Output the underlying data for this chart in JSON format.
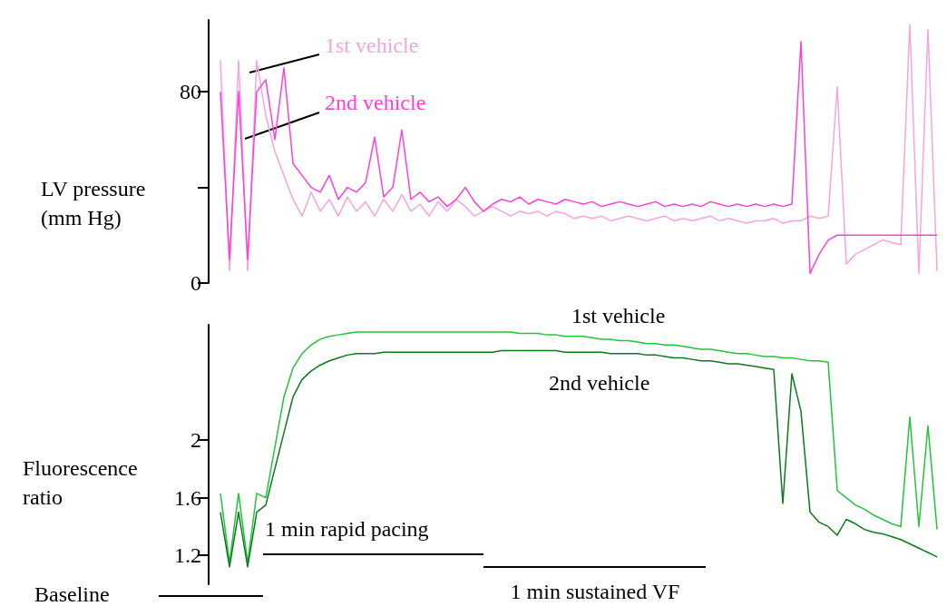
{
  "chart_data": [
    {
      "type": "line",
      "ylabel": "LV pressure (mm Hg)",
      "ylim": [
        0,
        110
      ],
      "yticks": [
        0,
        {
          "value": 40,
          "label": null
        },
        80
      ],
      "tick_labels": "y",
      "categories": [
        null,
        null,
        null,
        null,
        null,
        null,
        null,
        null,
        null,
        null,
        null,
        null,
        null,
        null,
        null,
        null,
        null,
        null,
        null,
        null,
        null,
        null,
        null,
        null,
        null,
        null,
        null,
        null,
        null,
        null,
        null,
        null,
        null,
        null,
        null,
        null,
        null,
        null,
        null,
        null,
        null,
        null,
        null,
        null,
        null,
        null,
        null,
        null,
        null,
        null,
        null,
        null,
        null,
        null,
        null,
        null,
        null,
        null,
        null,
        null,
        null,
        null,
        null,
        null,
        null,
        null,
        null,
        null,
        null,
        null,
        null,
        null,
        null,
        null,
        null,
        null,
        null,
        null,
        null,
        null
      ],
      "series": [
        {
          "name": "1st vehicle",
          "color": "#f7a3dd",
          "values": [
            93,
            5,
            93,
            5,
            93,
            70,
            55,
            45,
            35,
            28,
            38,
            30,
            35,
            28,
            36,
            30,
            34,
            28,
            35,
            30,
            37,
            30,
            33,
            28,
            34,
            30,
            35,
            32,
            28,
            30,
            32,
            30,
            28,
            30,
            29,
            30,
            28,
            30,
            29,
            27,
            28,
            27,
            28,
            26,
            27,
            28,
            27,
            26,
            27,
            28,
            26,
            27,
            26,
            27,
            28,
            26,
            27,
            26,
            25,
            26,
            26,
            27,
            25,
            26,
            26,
            28,
            27,
            28,
            82,
            8,
            12,
            14,
            16,
            18,
            17,
            16,
            108,
            4,
            106,
            5
          ]
        },
        {
          "name": "2nd vehicle",
          "color": "#ff40d6",
          "values": [
            80,
            10,
            80,
            10,
            80,
            85,
            60,
            90,
            50,
            45,
            40,
            38,
            45,
            35,
            40,
            38,
            42,
            61,
            36,
            40,
            64,
            35,
            38,
            34,
            36,
            32,
            35,
            40,
            34,
            30,
            33,
            35,
            34,
            36,
            33,
            35,
            34,
            33,
            35,
            34,
            33,
            34,
            32,
            33,
            34,
            33,
            32,
            33,
            34,
            32,
            33,
            32,
            33,
            32,
            34,
            33,
            32,
            33,
            32,
            33,
            32,
            33,
            32,
            33,
            101,
            4,
            12,
            18,
            20,
            20,
            20,
            20,
            20,
            20,
            20,
            20,
            20,
            20,
            20,
            20
          ]
        }
      ]
    },
    {
      "type": "line",
      "ylabel": "Fluorescence ratio",
      "ylim": [
        1.0,
        2.8
      ],
      "yticks": [
        1.2,
        1.6,
        2
      ],
      "tick_labels": "y",
      "annotations": [
        "Baseline",
        "1 min rapid pacing",
        "1 min sustained VF"
      ],
      "categories": [
        null,
        null,
        null,
        null,
        null,
        null,
        null,
        null,
        null,
        null,
        null,
        null,
        null,
        null,
        null,
        null,
        null,
        null,
        null,
        null,
        null,
        null,
        null,
        null,
        null,
        null,
        null,
        null,
        null,
        null,
        null,
        null,
        null,
        null,
        null,
        null,
        null,
        null,
        null,
        null,
        null,
        null,
        null,
        null,
        null,
        null,
        null,
        null,
        null,
        null,
        null,
        null,
        null,
        null,
        null,
        null,
        null,
        null,
        null,
        null,
        null,
        null,
        null,
        null,
        null,
        null,
        null,
        null,
        null,
        null,
        null,
        null,
        null,
        null,
        null,
        null,
        null,
        null,
        null,
        null
      ],
      "series": [
        {
          "name": "1st vehicle",
          "color": "#22c43a",
          "values": [
            1.63,
            1.15,
            1.63,
            1.15,
            1.63,
            1.6,
            1.95,
            2.3,
            2.5,
            2.6,
            2.66,
            2.7,
            2.72,
            2.73,
            2.74,
            2.75,
            2.75,
            2.75,
            2.75,
            2.75,
            2.75,
            2.75,
            2.75,
            2.75,
            2.75,
            2.75,
            2.75,
            2.75,
            2.75,
            2.75,
            2.75,
            2.75,
            2.75,
            2.74,
            2.74,
            2.74,
            2.73,
            2.73,
            2.72,
            2.72,
            2.72,
            2.71,
            2.7,
            2.7,
            2.69,
            2.69,
            2.68,
            2.67,
            2.67,
            2.66,
            2.66,
            2.65,
            2.64,
            2.63,
            2.63,
            2.62,
            2.61,
            2.6,
            2.6,
            2.59,
            2.58,
            2.58,
            2.57,
            2.57,
            2.56,
            2.55,
            2.55,
            2.54,
            1.65,
            1.6,
            1.55,
            1.52,
            1.48,
            1.45,
            1.42,
            1.4,
            2.16,
            1.4,
            2.1,
            1.38
          ]
        },
        {
          "name": "2nd vehicle",
          "color": "#0a7a1a",
          "values": [
            1.5,
            1.12,
            1.5,
            1.12,
            1.5,
            1.55,
            1.8,
            2.05,
            2.3,
            2.42,
            2.48,
            2.52,
            2.55,
            2.57,
            2.59,
            2.6,
            2.6,
            2.6,
            2.61,
            2.61,
            2.61,
            2.61,
            2.61,
            2.61,
            2.61,
            2.61,
            2.61,
            2.61,
            2.61,
            2.61,
            2.61,
            2.62,
            2.62,
            2.62,
            2.62,
            2.62,
            2.62,
            2.62,
            2.61,
            2.61,
            2.61,
            2.61,
            2.61,
            2.6,
            2.6,
            2.6,
            2.6,
            2.59,
            2.59,
            2.58,
            2.57,
            2.57,
            2.56,
            2.55,
            2.55,
            2.54,
            2.53,
            2.53,
            2.52,
            2.51,
            2.5,
            2.49,
            1.56,
            2.46,
            2.2,
            1.5,
            1.43,
            1.4,
            1.34,
            1.45,
            1.42,
            1.38,
            1.36,
            1.35,
            1.33,
            1.31,
            1.28,
            1.25,
            1.22,
            1.19
          ]
        }
      ]
    }
  ]
}
